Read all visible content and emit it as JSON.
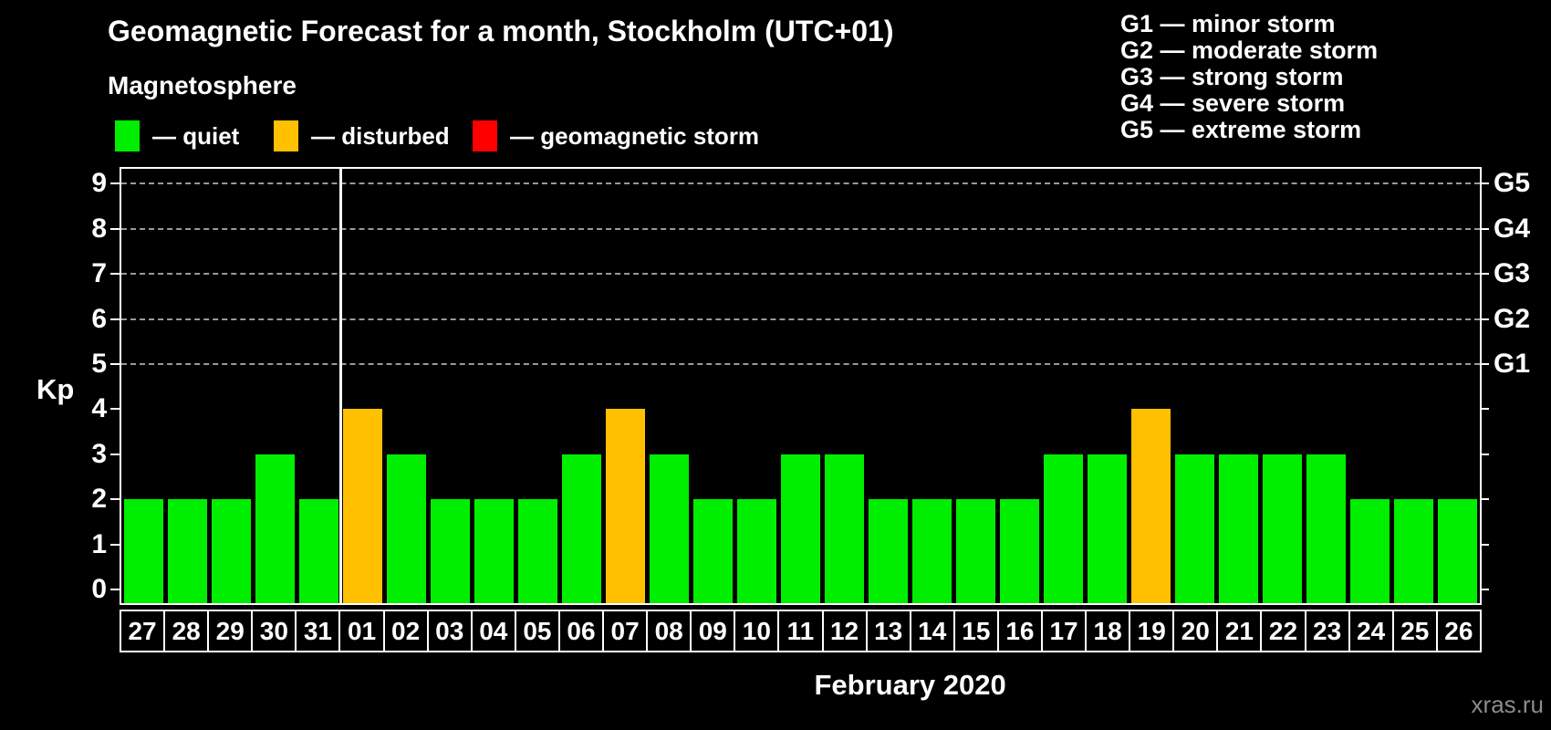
{
  "page": {
    "background": "#000000"
  },
  "header": {
    "title": "Geomagnetic Forecast for a month, Stockholm (UTC+01)",
    "subtitle": "Magnetosphere"
  },
  "legend": {
    "items": [
      {
        "id": "quiet",
        "swatch_color": "#00ee00",
        "label": "— quiet"
      },
      {
        "id": "disturbed",
        "swatch_color": "#ffc000",
        "label": "— disturbed"
      },
      {
        "id": "storm",
        "swatch_color": "#ff0000",
        "label": "— geomagnetic storm"
      }
    ]
  },
  "g_scale_legend": {
    "lines": [
      "G1 — minor storm",
      "G2 — moderate storm",
      "G3 — strong storm",
      "G4 — severe storm",
      "G5 — extreme storm"
    ]
  },
  "chart_data": {
    "type": "bar",
    "title": "Geomagnetic Forecast for a month, Stockholm (UTC+01)",
    "xlabel": "February 2020",
    "ylabel": "Kp",
    "ylim": [
      0,
      9
    ],
    "yticks": [
      0,
      1,
      2,
      3,
      4,
      5,
      6,
      7,
      8,
      9
    ],
    "grid_levels_kp": [
      5,
      6,
      7,
      8,
      9
    ],
    "grid_on": true,
    "legend_position": "top-left",
    "right_axis": [
      {
        "label": "G1",
        "kp": 5
      },
      {
        "label": "G2",
        "kp": 6
      },
      {
        "label": "G3",
        "kp": 7
      },
      {
        "label": "G4",
        "kp": 8
      },
      {
        "label": "G5",
        "kp": 9
      }
    ],
    "categories": [
      "27",
      "28",
      "29",
      "30",
      "31",
      "01",
      "02",
      "03",
      "04",
      "05",
      "06",
      "07",
      "08",
      "09",
      "10",
      "11",
      "12",
      "13",
      "14",
      "15",
      "16",
      "17",
      "18",
      "19",
      "20",
      "21",
      "22",
      "23",
      "24",
      "25",
      "26"
    ],
    "values": [
      2,
      2,
      2,
      3,
      2,
      4,
      3,
      2,
      2,
      2,
      3,
      4,
      3,
      2,
      2,
      3,
      3,
      2,
      2,
      2,
      2,
      3,
      3,
      4,
      3,
      3,
      3,
      3,
      2,
      2,
      2
    ],
    "statuses": [
      "quiet",
      "quiet",
      "quiet",
      "quiet",
      "quiet",
      "disturbed",
      "quiet",
      "quiet",
      "quiet",
      "quiet",
      "quiet",
      "disturbed",
      "quiet",
      "quiet",
      "quiet",
      "quiet",
      "quiet",
      "quiet",
      "quiet",
      "quiet",
      "quiet",
      "quiet",
      "quiet",
      "disturbed",
      "quiet",
      "quiet",
      "quiet",
      "quiet",
      "quiet",
      "quiet",
      "quiet"
    ],
    "status_colors": {
      "quiet": "#00ee00",
      "disturbed": "#ffc000",
      "storm": "#ff0000"
    },
    "month_separator_after_index": 4
  },
  "footer": {
    "month_label": "February 2020",
    "watermark": "xras.ru"
  }
}
